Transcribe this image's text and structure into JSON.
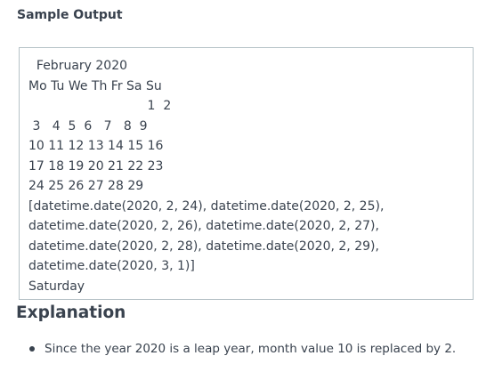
{
  "sample_output": {
    "title": "Sample Output",
    "lines": [
      "  February 2020",
      "Mo Tu We Th Fr Sa Su",
      "                              1  2",
      " 3   4  5  6   7   8  9",
      "10 11 12 13 14 15 16",
      "17 18 19 20 21 22 23",
      "24 25 26 27 28 29",
      "[datetime.date(2020, 2, 24), datetime.date(2020, 2, 25),",
      "datetime.date(2020, 2, 26), datetime.date(2020, 2, 27),",
      "datetime.date(2020, 2, 28), datetime.date(2020, 2, 29),",
      "datetime.date(2020, 3, 1)]",
      "Saturday"
    ]
  },
  "explanation": {
    "title": "Explanation",
    "bullets": [
      "Since the year 2020 is a leap year, month value 10 is replaced by 2."
    ]
  }
}
